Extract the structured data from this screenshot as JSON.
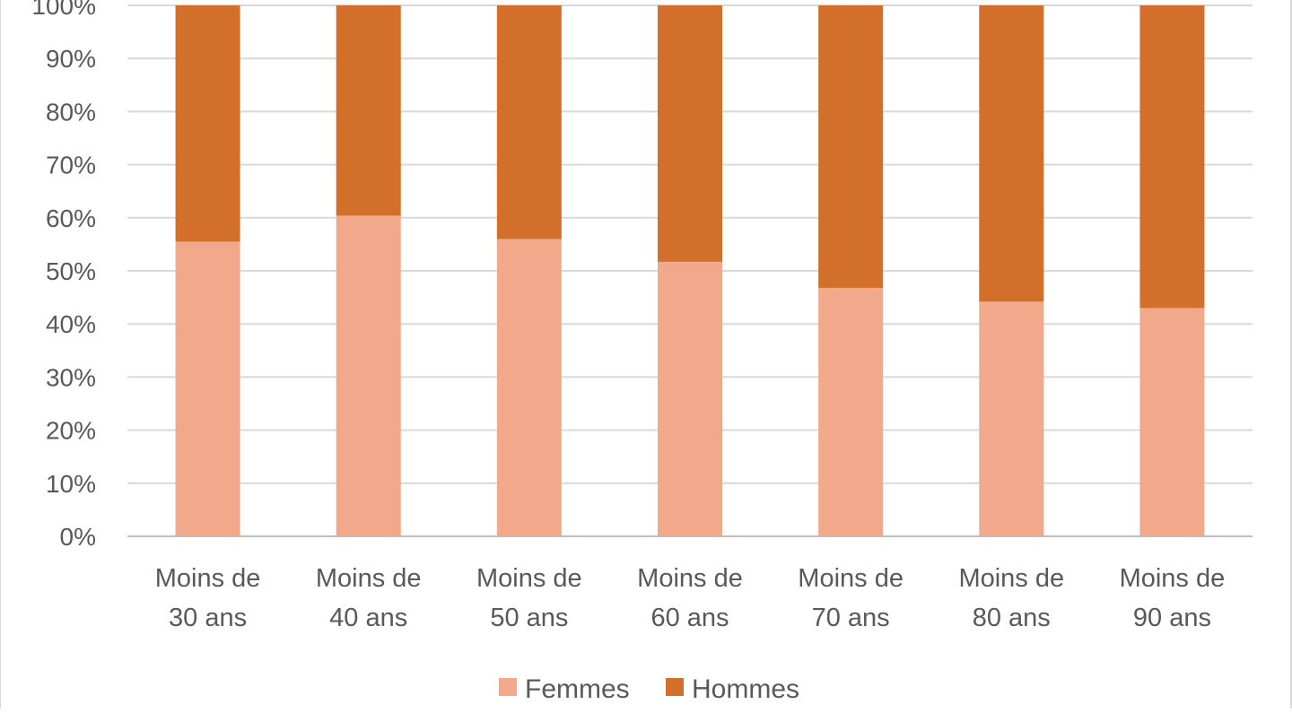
{
  "chart_data": {
    "type": "bar",
    "stacked": true,
    "percent_stacked": true,
    "categories": [
      [
        "Moins de",
        "30 ans"
      ],
      [
        "Moins de",
        "40 ans"
      ],
      [
        "Moins de",
        "50 ans"
      ],
      [
        "Moins de",
        "60 ans"
      ],
      [
        "Moins de",
        "70 ans"
      ],
      [
        "Moins de",
        "80 ans"
      ],
      [
        "Moins de",
        "90 ans"
      ]
    ],
    "series": [
      {
        "name": "Femmes",
        "color": "#f2a88a",
        "values": [
          55.5,
          60.4,
          56.0,
          51.7,
          46.8,
          44.2,
          43.0
        ]
      },
      {
        "name": "Hommes",
        "color": "#d2702b",
        "values": [
          44.5,
          39.6,
          44.0,
          48.3,
          53.2,
          55.8,
          57.0
        ]
      }
    ],
    "ylim": [
      0,
      100
    ],
    "yticks": [
      "0%",
      "10%",
      "20%",
      "30%",
      "40%",
      "50%",
      "60%",
      "70%",
      "80%",
      "90%",
      "100%"
    ],
    "grid": true,
    "legend_position": "bottom"
  }
}
